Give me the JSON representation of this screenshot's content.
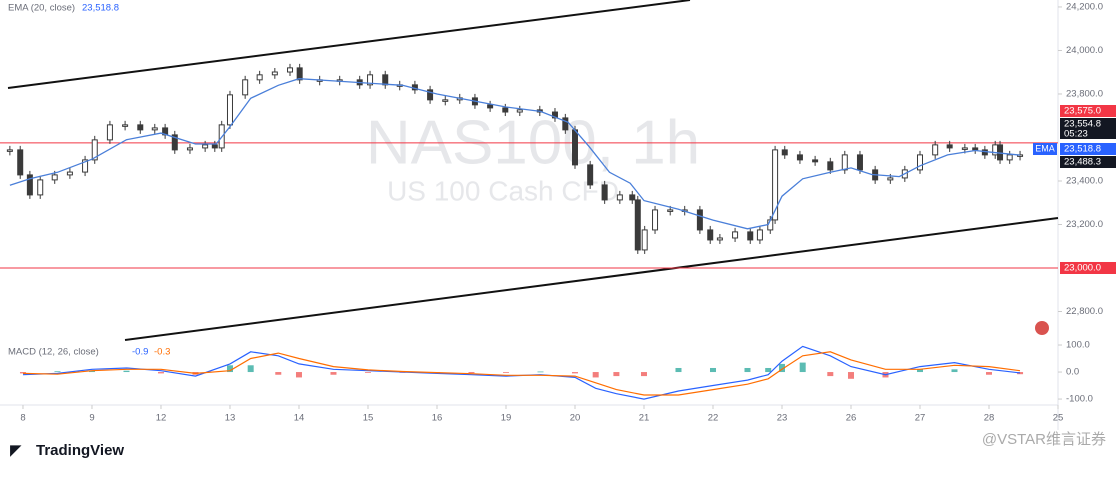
{
  "chart_data": [
    {
      "type": "candlestick",
      "watermark": "NAS100, 1h",
      "watermark_sub": "US 100 Cash CFD",
      "ema_legend": {
        "label": "EMA (20, close)",
        "value": "23,518.8"
      },
      "xlim": [
        -0.333,
        15.0
      ],
      "ylim": [
        22669,
        24232
      ],
      "xticks": [
        {
          "value": 0,
          "label": "8"
        },
        {
          "value": 1,
          "label": "9"
        },
        {
          "value": 2,
          "label": "12"
        },
        {
          "value": 3,
          "label": "13"
        },
        {
          "value": 4,
          "label": "14"
        },
        {
          "value": 5,
          "label": "15"
        },
        {
          "value": 6,
          "label": "16"
        },
        {
          "value": 7,
          "label": "19"
        },
        {
          "value": 8,
          "label": "20"
        },
        {
          "value": 9,
          "label": "21"
        },
        {
          "value": 10,
          "label": "22"
        },
        {
          "value": 11,
          "label": "23"
        },
        {
          "value": 12,
          "label": "26"
        },
        {
          "value": 13,
          "label": "27"
        },
        {
          "value": 14,
          "label": "28"
        },
        {
          "value": 15,
          "label": "25"
        }
      ],
      "yticks": [
        {
          "value": 24200,
          "label": "24,200.0"
        },
        {
          "value": 24000,
          "label": "24,000.0"
        },
        {
          "value": 23800,
          "label": "23,800.0"
        },
        {
          "value": 23400,
          "label": "23,400.0"
        },
        {
          "value": 23200,
          "label": "23,200.0"
        },
        {
          "value": 22800,
          "label": "22,800.0"
        }
      ],
      "levels": [
        {
          "value": 23575,
          "label": "23,575.0"
        },
        {
          "value": 23000,
          "label": "23,000.0"
        }
      ],
      "level_color": "#f23645",
      "last_labels": [
        "23,554.8",
        "05:23",
        "23,518.8",
        "23,488.3"
      ],
      "ema_tag": "EMA",
      "series": [
        {
          "color": "#3a3a3a",
          "x": [
            -0.19,
            -0.04,
            0.1,
            0.25,
            0.46,
            0.68,
            0.9,
            1.04,
            1.26,
            1.48,
            1.7,
            1.91,
            2.06,
            2.2,
            2.42,
            2.64,
            2.78,
            2.88,
            3.0,
            3.22,
            3.43,
            3.65,
            3.87,
            4.01,
            4.3,
            4.59,
            4.88,
            5.03,
            5.25,
            5.46,
            5.68,
            5.9,
            6.12,
            6.33,
            6.55,
            6.77,
            6.99,
            7.2,
            7.49,
            7.71,
            7.86,
            8.0,
            8.22,
            8.43,
            8.65,
            8.83,
            8.91,
            9.01,
            9.16,
            9.38,
            9.59,
            9.81,
            9.96,
            10.1,
            10.32,
            10.54,
            10.68,
            10.83,
            10.9,
            11.04,
            11.26,
            11.48,
            11.7,
            11.91,
            12.13,
            12.35,
            12.57,
            12.78,
            13.0,
            13.22,
            13.43,
            13.65,
            13.8,
            13.94,
            14.09,
            14.16,
            14.3,
            14.45
          ],
          "values": [
            23543,
            23428,
            23336,
            23405,
            23428,
            23441,
            23497,
            23589,
            23658,
            23658,
            23635,
            23644,
            23612,
            23543,
            23552,
            23566,
            23552,
            23658,
            23796,
            23865,
            23888,
            23901,
            23920,
            23865,
            23865,
            23865,
            23842,
            23888,
            23842,
            23842,
            23819,
            23773,
            23773,
            23782,
            23750,
            23736,
            23717,
            23727,
            23717,
            23690,
            23635,
            23474,
            23382,
            23313,
            23336,
            23313,
            23083,
            23175,
            23267,
            23267,
            23267,
            23175,
            23129,
            23138,
            23166,
            23129,
            23175,
            23221,
            23543,
            23520,
            23497,
            23488,
            23451,
            23520,
            23451,
            23405,
            23414,
            23451,
            23520,
            23566,
            23552,
            23552,
            23543,
            23520,
            23566,
            23497,
            23520,
            23520
          ]
        },
        {
          "color": "#4a7fd9",
          "kind": "line",
          "x": [
            -0.19,
            0.1,
            0.5,
            1.0,
            1.5,
            2.0,
            2.5,
            2.8,
            3.0,
            3.3,
            3.7,
            4.0,
            4.5,
            5.0,
            5.5,
            6.0,
            6.5,
            7.0,
            7.5,
            7.9,
            8.2,
            8.5,
            8.8,
            9.0,
            9.5,
            10.0,
            10.5,
            10.8,
            11.0,
            11.3,
            11.7,
            12.0,
            12.3,
            12.7,
            13.0,
            13.4,
            13.8,
            14.1,
            14.45
          ],
          "values": [
            23380,
            23410,
            23440,
            23500,
            23590,
            23620,
            23570,
            23570,
            23650,
            23780,
            23840,
            23870,
            23860,
            23850,
            23840,
            23800,
            23770,
            23740,
            23720,
            23670,
            23560,
            23440,
            23390,
            23310,
            23270,
            23220,
            23180,
            23200,
            23330,
            23410,
            23440,
            23460,
            23430,
            23420,
            23470,
            23520,
            23540,
            23530,
            23519
          ]
        }
      ]
    },
    {
      "type": "line",
      "legend": "MACD (12, 26, close)",
      "legend_values": [
        "-0.9",
        "-0.3"
      ],
      "xlim": [
        -0.333,
        15.0
      ],
      "ylim": [
        -122,
        126
      ],
      "yticks": [
        {
          "value": 100,
          "label": "100.0"
        },
        {
          "value": 0,
          "label": "0.0"
        },
        {
          "value": -100,
          "label": "-100.0"
        }
      ],
      "x": [
        0,
        0.5,
        1,
        1.5,
        2,
        2.5,
        3,
        3.3,
        3.7,
        4,
        4.5,
        5,
        5.5,
        6,
        6.5,
        7,
        7.5,
        8,
        8.3,
        8.6,
        9,
        9.5,
        10,
        10.5,
        10.8,
        11,
        11.3,
        11.7,
        12,
        12.5,
        13,
        13.5,
        14,
        14.45
      ],
      "series": [
        {
          "color": "#2962ff",
          "values": [
            -10,
            -5,
            10,
            15,
            5,
            -15,
            30,
            75,
            60,
            30,
            10,
            5,
            0,
            -5,
            -10,
            -15,
            -10,
            -20,
            -60,
            -80,
            -100,
            -70,
            -50,
            -30,
            -10,
            40,
            95,
            60,
            20,
            -10,
            20,
            35,
            10,
            -3
          ]
        },
        {
          "color": "#ff6d00",
          "values": [
            -5,
            -8,
            5,
            10,
            10,
            -5,
            5,
            50,
            70,
            50,
            20,
            8,
            2,
            -2,
            -6,
            -12,
            -12,
            -15,
            -40,
            -65,
            -85,
            -85,
            -65,
            -45,
            -25,
            10,
            60,
            75,
            45,
            10,
            10,
            25,
            20,
            5
          ]
        }
      ],
      "histogram": {
        "up_color": "#26a69a",
        "down_color": "#ef5350",
        "values": [
          -5,
          3,
          5,
          5,
          -5,
          -10,
          25,
          25,
          -10,
          -20,
          -10,
          -3,
          -2,
          -3,
          -4,
          -3,
          2,
          -5,
          -20,
          -15,
          -15,
          15,
          15,
          15,
          15,
          30,
          35,
          -15,
          -25,
          -20,
          10,
          10,
          -10,
          -8
        ]
      }
    }
  ],
  "brand": "TradingView",
  "credit": "@VSTAR维言证券"
}
